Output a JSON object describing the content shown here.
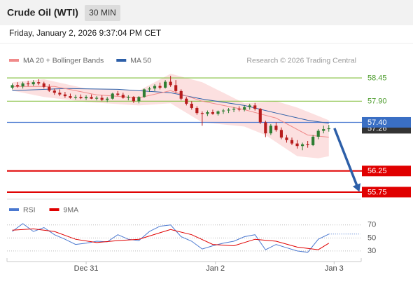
{
  "chart_data": {
    "type": "candlestick",
    "title": "Crude Oil (WTI)",
    "timeframe": "30 MIN",
    "timestamp": "Friday, January 2, 2026 9:37:04 PM CET",
    "source": "Research © 2026 Trading Central",
    "legend": [
      {
        "name": "MA 20 + Bollinger Bands",
        "color": "#f08a8a"
      },
      {
        "name": "MA 50",
        "color": "#2d5fa8"
      }
    ],
    "up_color": "#2e7d32",
    "down_color": "#b71c1c",
    "xlim": [
      -1,
      66
    ],
    "xticks": [
      {
        "value": 14,
        "label": "Dec 31"
      },
      {
        "value": 38.5,
        "label": "Jan 2"
      },
      {
        "value": 61,
        "label": "Jan 3"
      }
    ],
    "ylim": [
      55.6,
      59.0
    ],
    "candles": [
      [
        58.22,
        58.32,
        58.18,
        58.28
      ],
      [
        58.28,
        58.35,
        58.22,
        58.25
      ],
      [
        58.25,
        58.36,
        58.2,
        58.32
      ],
      [
        58.32,
        58.38,
        58.25,
        58.3
      ],
      [
        58.3,
        58.4,
        58.26,
        58.35
      ],
      [
        58.35,
        58.42,
        58.28,
        58.32
      ],
      [
        58.32,
        58.36,
        58.2,
        58.24
      ],
      [
        58.24,
        58.3,
        58.12,
        58.15
      ],
      [
        58.15,
        58.2,
        58.05,
        58.1
      ],
      [
        58.1,
        58.18,
        58.02,
        58.06
      ],
      [
        58.06,
        58.12,
        57.98,
        58.02
      ],
      [
        58.02,
        58.08,
        57.96,
        57.98
      ],
      [
        57.98,
        58.05,
        57.94,
        58.0
      ],
      [
        58.0,
        58.06,
        57.95,
        57.97
      ],
      [
        57.97,
        58.04,
        57.93,
        58.0
      ],
      [
        58.0,
        58.06,
        57.95,
        57.96
      ],
      [
        57.96,
        58.02,
        57.92,
        57.98
      ],
      [
        57.98,
        58.04,
        57.9,
        57.93
      ],
      [
        57.93,
        58.0,
        57.88,
        57.96
      ],
      [
        57.96,
        58.1,
        57.94,
        58.08
      ],
      [
        58.08,
        58.14,
        58.02,
        58.05
      ],
      [
        58.05,
        58.1,
        57.96,
        57.98
      ],
      [
        57.98,
        58.04,
        57.92,
        58.0
      ],
      [
        58.0,
        58.02,
        57.86,
        57.9
      ],
      [
        57.9,
        58.02,
        57.85,
        58.0
      ],
      [
        58.0,
        58.2,
        57.98,
        58.18
      ],
      [
        58.18,
        58.24,
        58.12,
        58.2
      ],
      [
        58.2,
        58.3,
        58.14,
        58.26
      ],
      [
        58.26,
        58.34,
        58.18,
        58.22
      ],
      [
        58.22,
        58.4,
        58.2,
        58.36
      ],
      [
        58.36,
        58.5,
        58.24,
        58.28
      ],
      [
        58.28,
        58.4,
        58.1,
        58.14
      ],
      [
        58.14,
        58.18,
        57.92,
        57.96
      ],
      [
        57.96,
        58.0,
        57.8,
        57.84
      ],
      [
        57.84,
        57.9,
        57.7,
        57.74
      ],
      [
        57.74,
        57.78,
        57.58,
        57.62
      ],
      [
        57.62,
        57.66,
        57.32,
        57.6
      ],
      [
        57.6,
        57.68,
        57.55,
        57.64
      ],
      [
        57.64,
        57.7,
        57.58,
        57.6
      ],
      [
        57.6,
        57.68,
        57.56,
        57.66
      ],
      [
        57.66,
        57.72,
        57.6,
        57.68
      ],
      [
        57.68,
        57.74,
        57.62,
        57.7
      ],
      [
        57.7,
        57.76,
        57.64,
        57.72
      ],
      [
        57.72,
        57.78,
        57.66,
        57.7
      ],
      [
        57.7,
        57.8,
        57.66,
        57.76
      ],
      [
        57.76,
        57.84,
        57.7,
        57.8
      ],
      [
        57.8,
        57.86,
        57.68,
        57.72
      ],
      [
        57.72,
        57.74,
        57.36,
        57.4
      ],
      [
        57.4,
        57.44,
        57.05,
        57.14
      ],
      [
        57.14,
        57.36,
        57.1,
        57.32
      ],
      [
        57.32,
        57.4,
        57.18,
        57.22
      ],
      [
        57.22,
        57.28,
        57.0,
        57.04
      ],
      [
        57.04,
        57.1,
        56.92,
        56.98
      ],
      [
        56.98,
        57.04,
        56.86,
        56.9
      ],
      [
        56.9,
        56.98,
        56.78,
        56.84
      ],
      [
        56.84,
        56.92,
        56.74,
        56.88
      ],
      [
        56.88,
        56.96,
        56.8,
        56.86
      ],
      [
        56.86,
        57.1,
        56.84,
        57.06
      ],
      [
        57.06,
        57.24,
        57.0,
        57.2
      ],
      [
        57.2,
        57.32,
        57.14,
        57.24
      ],
      [
        57.24,
        57.34,
        57.18,
        57.26
      ]
    ],
    "ma20": {
      "x": [
        0,
        8,
        16,
        24,
        30,
        36,
        44,
        50,
        56,
        60
      ],
      "values": [
        58.25,
        58.25,
        58.05,
        57.98,
        58.15,
        57.9,
        57.7,
        57.5,
        57.1,
        57.05
      ]
    },
    "ma50": {
      "x": [
        0,
        10,
        20,
        30,
        36,
        44,
        50,
        56,
        60
      ],
      "values": [
        58.15,
        58.2,
        58.18,
        58.1,
        57.95,
        57.8,
        57.62,
        57.45,
        57.38
      ]
    },
    "bb_upper": {
      "x": [
        0,
        6,
        14,
        24,
        30,
        36,
        44,
        50,
        54,
        58,
        60
      ],
      "values": [
        58.35,
        58.42,
        58.2,
        58.15,
        58.55,
        58.35,
        57.85,
        57.9,
        57.75,
        57.55,
        57.45
      ]
    },
    "bb_lower": {
      "x": [
        0,
        6,
        14,
        24,
        30,
        36,
        44,
        48,
        54,
        58,
        60
      ],
      "values": [
        58.15,
        58.0,
        57.88,
        57.8,
        57.85,
        57.4,
        57.3,
        57.1,
        56.6,
        56.55,
        56.6
      ]
    },
    "levels": [
      {
        "value": 58.45,
        "label": "58.45",
        "color": "#8bc34a",
        "text_color": "#4a9a2a",
        "box": false
      },
      {
        "value": 57.9,
        "label": "57.90",
        "color": "#8bc34a",
        "text_color": "#4a9a2a",
        "box": false
      },
      {
        "value": 57.26,
        "label": "57.26",
        "color": null,
        "text_color": "#ffffff",
        "box": "#333333"
      },
      {
        "value": 57.4,
        "label": "57.40",
        "color": "#4a78d0",
        "text_color": "#ffffff",
        "box": "#3a6fc4"
      },
      {
        "value": 56.25,
        "label": "56.25",
        "color": "#e00000",
        "text_color": "#ffffff",
        "box": "#e00000"
      },
      {
        "value": 55.75,
        "label": "55.75",
        "color": "#e00000",
        "text_color": "#ffffff",
        "box": "#e00000"
      }
    ],
    "arrow": {
      "from": 57.26,
      "to": 55.75,
      "color": "#2d5fa8"
    },
    "rsi": {
      "legend": [
        {
          "name": "RSI",
          "color": "#4a78d0"
        },
        {
          "name": "9MA",
          "color": "#e00000"
        }
      ],
      "ylim": [
        17,
        87
      ],
      "yticks": [
        70,
        50,
        30
      ],
      "rsi": {
        "x": [
          0,
          2,
          4,
          6,
          8,
          10,
          12,
          14,
          16,
          18,
          20,
          22,
          24,
          26,
          28,
          30,
          32,
          34,
          36,
          38,
          40,
          42,
          44,
          46,
          48,
          50,
          52,
          54,
          56,
          58,
          60
        ],
        "values": [
          60,
          72,
          60,
          66,
          55,
          48,
          40,
          42,
          45,
          44,
          55,
          48,
          46,
          60,
          68,
          70,
          52,
          45,
          33,
          38,
          42,
          45,
          52,
          55,
          32,
          40,
          35,
          30,
          28,
          48,
          56
        ]
      },
      "ma9": {
        "x": [
          0,
          4,
          8,
          12,
          16,
          20,
          24,
          28,
          30,
          34,
          38,
          42,
          46,
          50,
          54,
          58,
          60
        ],
        "values": [
          62,
          64,
          60,
          48,
          43,
          46,
          48,
          58,
          63,
          55,
          40,
          38,
          48,
          45,
          36,
          32,
          42
        ]
      }
    }
  }
}
